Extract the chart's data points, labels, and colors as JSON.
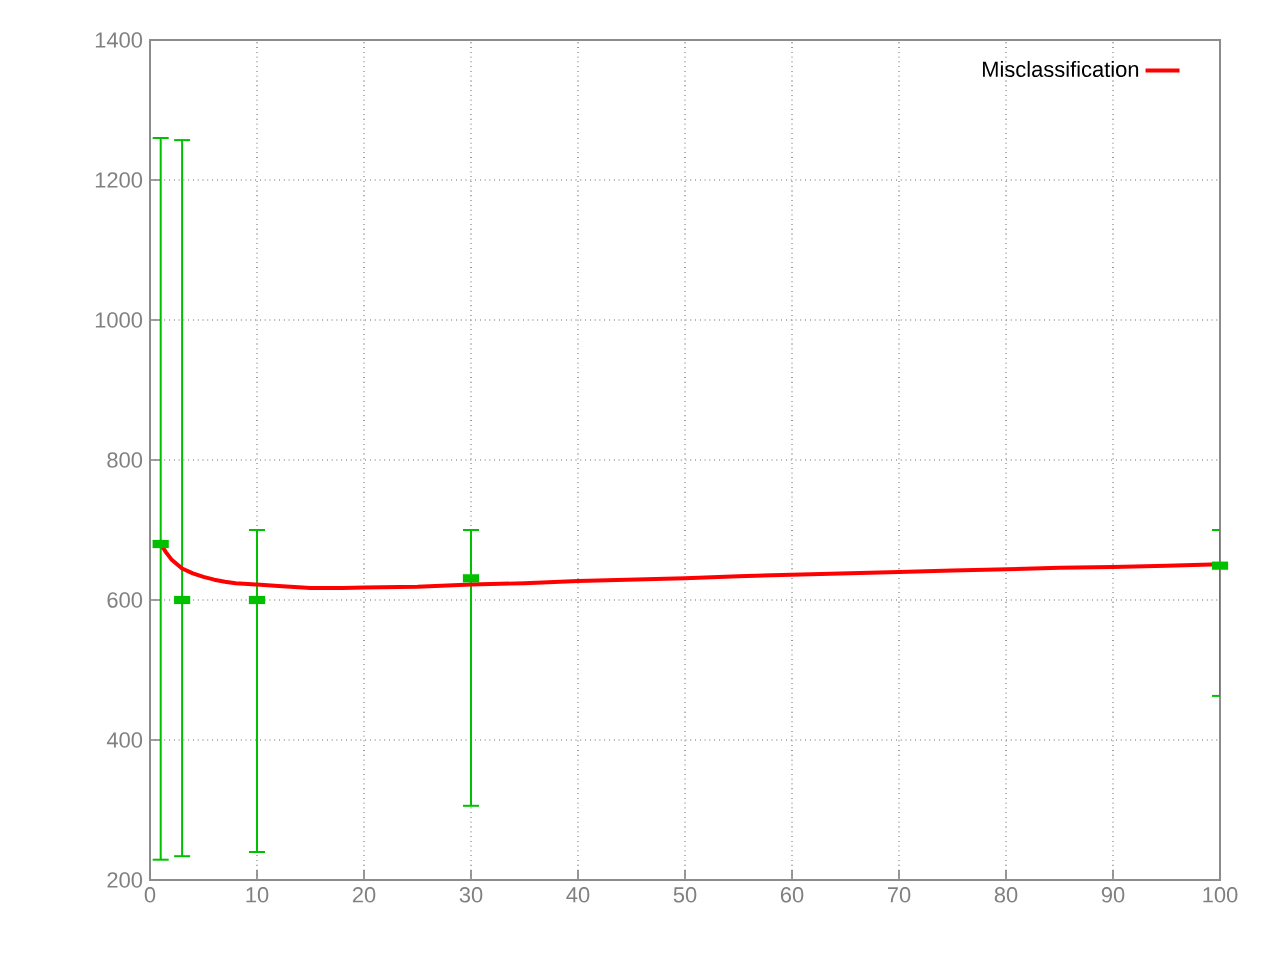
{
  "chart_data": {
    "type": "line",
    "xlim": [
      0,
      100
    ],
    "xticks": [
      0,
      10,
      20,
      30,
      40,
      50,
      60,
      70,
      80,
      90,
      100
    ],
    "ylim": [
      200,
      1400
    ],
    "yticks": [
      200,
      400,
      600,
      800,
      1000,
      1200,
      1400
    ],
    "grid": true,
    "legend": "top right",
    "series": [
      {
        "name": "Misclassification",
        "color": "#ff0000",
        "x": [
          1,
          1.5,
          2,
          3,
          4,
          5,
          6,
          7,
          8,
          10,
          12,
          15,
          18,
          20,
          25,
          30,
          35,
          40,
          45,
          50,
          55,
          60,
          65,
          70,
          75,
          80,
          85,
          90,
          95,
          100
        ],
        "values": [
          680,
          668,
          658,
          645,
          638,
          633,
          629,
          626,
          624,
          622,
          620,
          617,
          617,
          618,
          619,
          622,
          624,
          627,
          629,
          631,
          634,
          636,
          638,
          640,
          642,
          644,
          646,
          647,
          649,
          651
        ]
      },
      {
        "type": "scatter",
        "color": "#00c000",
        "x": [
          1,
          3,
          10,
          30,
          100
        ],
        "values": [
          680,
          600,
          600,
          631,
          649
        ],
        "errors": [
          [
            229,
            1260
          ],
          [
            234,
            1257
          ],
          [
            240,
            700
          ],
          [
            306,
            700
          ],
          [
            463,
            700
          ]
        ]
      }
    ]
  }
}
